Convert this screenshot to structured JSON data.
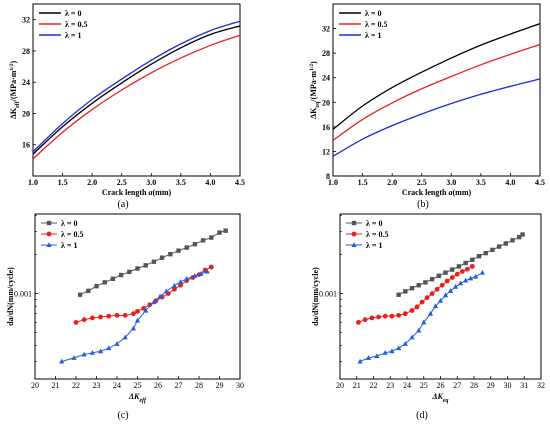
{
  "chart_data": [
    {
      "type": "line",
      "panel": "(a)",
      "xlabel": "Crack length a(mm)",
      "ylabel": "ΔK_eff/(MPa·m^1/2)",
      "xlim": [
        1.0,
        4.5
      ],
      "ylim": [
        12,
        34
      ],
      "xticks": [
        "1.0",
        "1.5",
        "2.0",
        "2.5",
        "3.0",
        "3.5",
        "4.0",
        "4.5"
      ],
      "yticks": [
        "16",
        "20",
        "24",
        "28",
        "32"
      ],
      "legend_placement": "top-left",
      "series": [
        {
          "name": "λ = 0",
          "color": "#000000",
          "x": [
            1.0,
            1.5,
            2.0,
            2.5,
            3.0,
            3.5,
            4.0,
            4.5
          ],
          "y": [
            14.8,
            18.3,
            21.3,
            23.9,
            26.3,
            28.4,
            30.1,
            31.2
          ]
        },
        {
          "name": "λ = 0.5",
          "color": "#e8201b",
          "x": [
            1.0,
            1.5,
            2.0,
            2.5,
            3.0,
            3.5,
            4.0,
            4.5
          ],
          "y": [
            14.2,
            17.6,
            20.5,
            23.0,
            25.2,
            27.1,
            28.7,
            30.0
          ]
        },
        {
          "name": "λ = 1",
          "color": "#1f2bd6",
          "x": [
            1.0,
            1.5,
            2.0,
            2.5,
            3.0,
            3.5,
            4.0,
            4.5
          ],
          "y": [
            15.1,
            18.7,
            21.8,
            24.4,
            26.8,
            28.9,
            30.6,
            31.8
          ]
        }
      ]
    },
    {
      "type": "line",
      "panel": "(b)",
      "xlabel": "Crack length a(mm)",
      "ylabel": "ΔK_eq/(MPa·m^1/2)",
      "xlim": [
        1.0,
        4.5
      ],
      "ylim": [
        8,
        36
      ],
      "xticks": [
        "1.0",
        "1.5",
        "2.0",
        "2.5",
        "3.0",
        "3.5",
        "4.0",
        "4.5"
      ],
      "yticks": [
        "8",
        "12",
        "16",
        "20",
        "24",
        "28",
        "32"
      ],
      "legend_placement": "top-left",
      "series": [
        {
          "name": "λ = 0",
          "color": "#000000",
          "x": [
            1.0,
            1.5,
            2.0,
            2.5,
            3.0,
            3.5,
            4.0,
            4.5
          ],
          "y": [
            15.6,
            19.4,
            22.4,
            24.9,
            27.2,
            29.3,
            31.1,
            32.8
          ]
        },
        {
          "name": "λ = 0.5",
          "color": "#e8201b",
          "x": [
            1.0,
            1.5,
            2.0,
            2.5,
            3.0,
            3.5,
            4.0,
            4.5
          ],
          "y": [
            13.8,
            17.2,
            19.9,
            22.2,
            24.2,
            26.1,
            27.8,
            29.4
          ]
        },
        {
          "name": "λ = 1",
          "color": "#1f2bd6",
          "x": [
            1.0,
            1.5,
            2.0,
            2.5,
            3.0,
            3.5,
            4.0,
            4.5
          ],
          "y": [
            11.2,
            14.0,
            16.2,
            18.1,
            19.8,
            21.3,
            22.6,
            23.8
          ]
        }
      ]
    },
    {
      "type": "scatter",
      "panel": "(c)",
      "xlabel": "ΔK_eff",
      "ylabel": "da/dN(mm/cycle)",
      "xlim": [
        20,
        30
      ],
      "y_scale": "log",
      "ylim": [
        0.00022,
        0.0041
      ],
      "xticks": [
        "20",
        "21",
        "22",
        "23",
        "24",
        "25",
        "26",
        "27",
        "28",
        "29",
        "30"
      ],
      "yticks": [
        "0.001"
      ],
      "legend_placement": "top-left",
      "series": [
        {
          "name": "λ = 0",
          "color": "#555555",
          "marker": "square",
          "x": [
            22.2,
            22.6,
            23.0,
            23.4,
            23.8,
            24.2,
            24.6,
            25.0,
            25.4,
            25.8,
            26.2,
            26.6,
            27.0,
            27.4,
            27.8,
            28.2,
            28.6,
            29.0,
            29.3
          ],
          "y": [
            0.00098,
            0.00105,
            0.00114,
            0.00122,
            0.0013,
            0.00139,
            0.00147,
            0.00156,
            0.00165,
            0.00176,
            0.00189,
            0.00201,
            0.00214,
            0.00226,
            0.0024,
            0.00257,
            0.0027,
            0.00295,
            0.00305
          ]
        },
        {
          "name": "λ = 0.5",
          "color": "#e8201b",
          "marker": "circle",
          "x": [
            22.0,
            22.4,
            22.8,
            23.2,
            23.6,
            24.0,
            24.4,
            24.8,
            25.0,
            25.3,
            25.6,
            25.9,
            26.2,
            26.5,
            26.8,
            27.1,
            27.4,
            27.7,
            28.0,
            28.3,
            28.6
          ],
          "y": [
            0.0006,
            0.00063,
            0.00065,
            0.00066,
            0.00067,
            0.00068,
            0.00068,
            0.0007,
            0.00073,
            0.00077,
            0.00082,
            0.00088,
            0.00094,
            0.001,
            0.00108,
            0.00116,
            0.00126,
            0.00133,
            0.0014,
            0.00152,
            0.0016
          ]
        },
        {
          "name": "λ = 1",
          "color": "#1f5fe0",
          "marker": "triangle",
          "x": [
            21.3,
            21.9,
            22.4,
            22.8,
            23.2,
            23.6,
            24.0,
            24.4,
            24.8,
            25.0,
            25.4,
            25.8,
            26.1,
            26.4,
            26.8,
            27.1,
            27.4,
            27.8,
            28.1,
            28.4
          ],
          "y": [
            0.0003,
            0.00032,
            0.00034,
            0.00035,
            0.00036,
            0.00038,
            0.00041,
            0.00046,
            0.00054,
            0.00062,
            0.00074,
            0.00086,
            0.00095,
            0.00104,
            0.00115,
            0.00123,
            0.0013,
            0.00137,
            0.00142,
            0.00148
          ]
        }
      ]
    },
    {
      "type": "scatter",
      "panel": "(d)",
      "xlabel": "ΔK_eq",
      "ylabel": "da/dN(mm/cycle)",
      "xlim": [
        20,
        32
      ],
      "y_scale": "log",
      "ylim": [
        0.00022,
        0.0041
      ],
      "xticks": [
        "20",
        "21",
        "22",
        "23",
        "24",
        "25",
        "26",
        "27",
        "28",
        "29",
        "30",
        "31",
        "32"
      ],
      "yticks": [
        "0.001"
      ],
      "legend_placement": "top-left",
      "series": [
        {
          "name": "λ = 0",
          "color": "#555555",
          "marker": "square",
          "x": [
            23.5,
            23.9,
            24.3,
            24.7,
            25.1,
            25.5,
            25.9,
            26.3,
            26.7,
            27.1,
            27.5,
            27.9,
            28.3,
            28.7,
            29.1,
            29.5,
            29.9,
            30.3,
            30.7,
            30.9
          ],
          "y": [
            0.00098,
            0.00104,
            0.0011,
            0.00116,
            0.00122,
            0.00129,
            0.00137,
            0.00145,
            0.00153,
            0.00162,
            0.00172,
            0.00182,
            0.00194,
            0.00205,
            0.00217,
            0.0023,
            0.00243,
            0.00257,
            0.00272,
            0.00285
          ]
        },
        {
          "name": "λ = 0.5",
          "color": "#e8201b",
          "marker": "circle",
          "x": [
            21.1,
            21.5,
            21.9,
            22.3,
            22.7,
            23.1,
            23.5,
            23.9,
            24.3,
            24.6,
            24.9,
            25.2,
            25.5,
            25.8,
            26.1,
            26.4,
            26.7,
            27.0,
            27.3,
            27.6,
            27.9
          ],
          "y": [
            0.0006,
            0.00063,
            0.00065,
            0.00066,
            0.00067,
            0.00067,
            0.00068,
            0.0007,
            0.00074,
            0.00079,
            0.00086,
            0.00093,
            0.001,
            0.00108,
            0.00116,
            0.00125,
            0.00133,
            0.00141,
            0.00148,
            0.00154,
            0.00162
          ]
        },
        {
          "name": "λ = 1",
          "color": "#1f5fe0",
          "marker": "triangle",
          "x": [
            21.2,
            21.7,
            22.2,
            22.7,
            23.1,
            23.5,
            23.9,
            24.3,
            24.7,
            25.0,
            25.4,
            25.7,
            26.0,
            26.3,
            26.6,
            26.9,
            27.2,
            27.5,
            27.8,
            28.1,
            28.5
          ],
          "y": [
            0.0003,
            0.00032,
            0.00033,
            0.00035,
            0.00036,
            0.00038,
            0.00041,
            0.00046,
            0.00052,
            0.0006,
            0.0007,
            0.0008,
            0.00088,
            0.00097,
            0.00105,
            0.00113,
            0.0012,
            0.00126,
            0.00131,
            0.00135,
            0.00145
          ]
        }
      ]
    }
  ]
}
